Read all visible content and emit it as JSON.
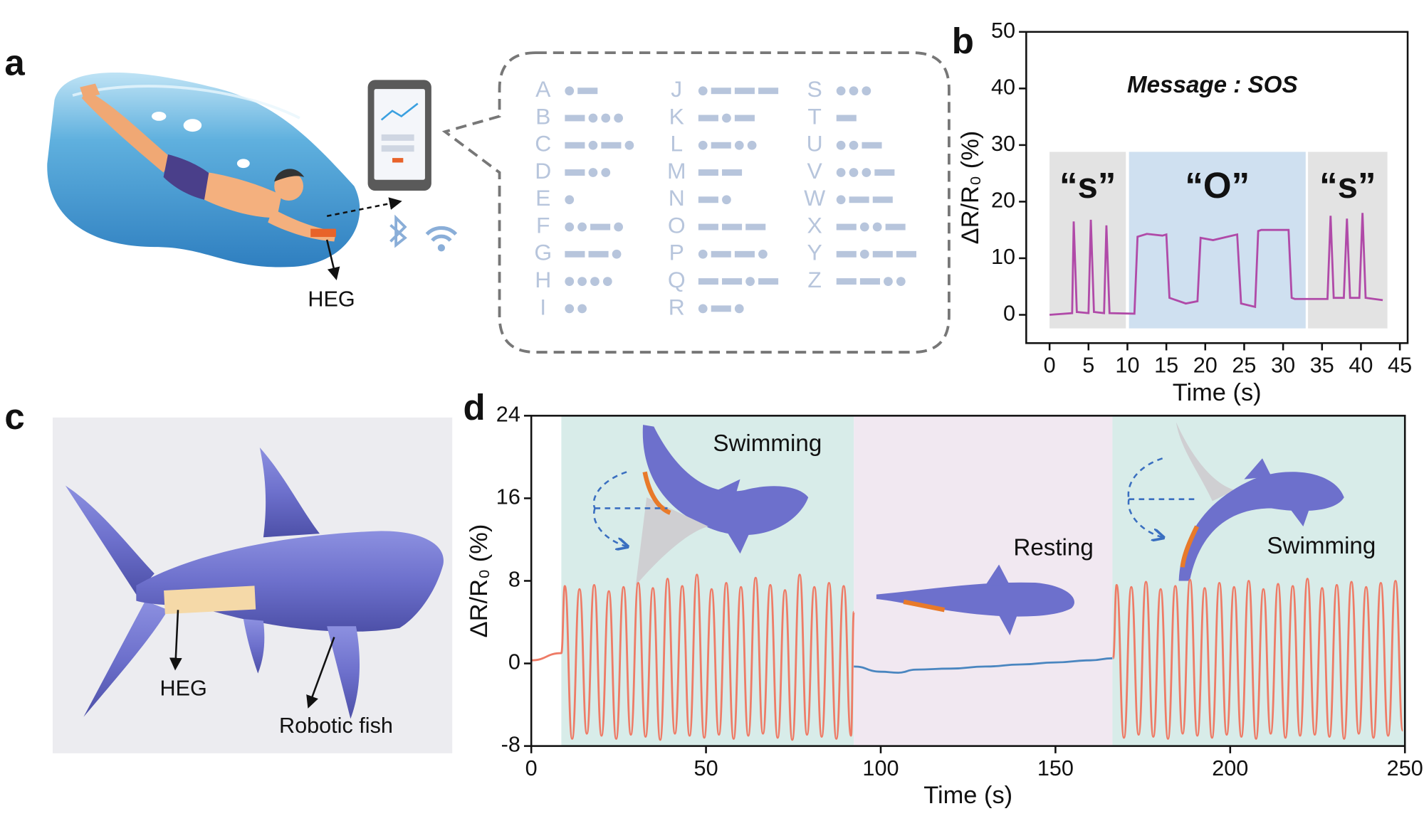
{
  "panel_labels": [
    "a",
    "b",
    "c",
    "d"
  ],
  "panel_a": {
    "device_label": "HEG",
    "morse": [
      {
        "letter": "A",
        "code": ".-"
      },
      {
        "letter": "B",
        "code": "-..."
      },
      {
        "letter": "C",
        "code": "-.-."
      },
      {
        "letter": "D",
        "code": "-.."
      },
      {
        "letter": "E",
        "code": "."
      },
      {
        "letter": "F",
        "code": "..-."
      },
      {
        "letter": "G",
        "code": "--."
      },
      {
        "letter": "H",
        "code": "...."
      },
      {
        "letter": "I",
        "code": ".."
      },
      {
        "letter": "J",
        "code": ".---"
      },
      {
        "letter": "K",
        "code": "-.-"
      },
      {
        "letter": "L",
        "code": ".-.."
      },
      {
        "letter": "M",
        "code": "--"
      },
      {
        "letter": "N",
        "code": "-."
      },
      {
        "letter": "O",
        "code": "---"
      },
      {
        "letter": "P",
        "code": ".--."
      },
      {
        "letter": "Q",
        "code": "--.-"
      },
      {
        "letter": "R",
        "code": ".-."
      },
      {
        "letter": "S",
        "code": "..."
      },
      {
        "letter": "T",
        "code": "-"
      },
      {
        "letter": "U",
        "code": "..-"
      },
      {
        "letter": "V",
        "code": "...-"
      },
      {
        "letter": "W",
        "code": ".--"
      },
      {
        "letter": "X",
        "code": "-..-"
      },
      {
        "letter": "Y",
        "code": "-.--"
      },
      {
        "letter": "Z",
        "code": "--.."
      }
    ]
  },
  "panel_c": {
    "heg_label": "HEG",
    "fish_label": "Robotic fish"
  },
  "chart_data": [
    {
      "type": "line",
      "annotation": "Message : SOS",
      "xlabel": "Time (s)",
      "ylabel": "ΔR/R₀ (%)",
      "xlim": [
        -3,
        46
      ],
      "ylim": [
        -5,
        50
      ],
      "xticks": [
        0,
        5,
        10,
        15,
        20,
        25,
        30,
        35,
        40,
        45
      ],
      "yticks": [
        0,
        10,
        20,
        30,
        40,
        50
      ],
      "regions": [
        {
          "label": "“s”",
          "x": [
            0,
            9.8
          ],
          "y": [
            -2.4,
            28.8
          ],
          "color": "#e3e3e3"
        },
        {
          "label": "“O”",
          "x": [
            10.2,
            32.9
          ],
          "y": [
            -2.4,
            28.8
          ],
          "color": "#cfe0f0"
        },
        {
          "label": "“s”",
          "x": [
            33.2,
            43.4
          ],
          "y": [
            -2.4,
            28.8
          ],
          "color": "#e3e3e3"
        }
      ],
      "series": [
        {
          "color": "#b04aa8",
          "x": [
            0,
            2.9,
            3.1,
            3.5,
            5.0,
            5.3,
            5.7,
            7.0,
            7.3,
            7.7,
            10.9,
            11.3,
            12.5,
            14.5,
            15.0,
            15.4,
            17.5,
            19.0,
            19.4,
            21,
            23.5,
            24.1,
            24.6,
            26.4,
            26.8,
            27.2,
            30.7,
            31.1,
            31.5,
            35.7,
            36.1,
            36.5,
            37.8,
            38.2,
            38.6,
            39.8,
            40.2,
            40.6,
            42.8
          ],
          "values": [
            0,
            0.3,
            16.5,
            0.5,
            0.3,
            16.8,
            0.5,
            0.3,
            15.8,
            0.3,
            0.2,
            13.8,
            14.3,
            14.0,
            14.2,
            3.0,
            2.0,
            2.4,
            13.6,
            13.2,
            14.0,
            14.2,
            2.0,
            1.4,
            14.8,
            15.0,
            15.0,
            3.0,
            2.8,
            2.8,
            17.5,
            3.0,
            3.0,
            17.0,
            3.0,
            3.0,
            18.0,
            3.0,
            2.6
          ]
        }
      ]
    },
    {
      "type": "line",
      "smooth": true,
      "xlabel": "Time (s)",
      "ylabel": "ΔR/R₀ (%)",
      "xlim": [
        0,
        250
      ],
      "ylim": [
        -8,
        24
      ],
      "xticks": [
        0,
        50,
        100,
        150,
        200,
        250
      ],
      "yticks": [
        -8,
        0,
        8,
        16,
        24
      ],
      "regions": [
        {
          "label": "Swimming",
          "x": [
            8.6,
            92.3
          ],
          "color": "#d8ece9"
        },
        {
          "label": "Resting",
          "x": [
            92.3,
            166.3
          ],
          "color": "#f1e8f1"
        },
        {
          "label": "Swimming",
          "x": [
            166.3,
            250
          ],
          "color": "#d8ece9"
        }
      ],
      "series": [
        {
          "color": "#ee7b66",
          "x": [
            0,
            8.6,
            9.6,
            11.7,
            13.8,
            15.9,
            18.0,
            20.1,
            22.2,
            24.3,
            26.4,
            28.5,
            30.6,
            32.7,
            34.8,
            36.9,
            39.0,
            41.1,
            43.2,
            45.3,
            47.4,
            49.5,
            51.6,
            53.7,
            55.8,
            57.9,
            60.0,
            62.1,
            64.2,
            66.3,
            68.4,
            70.5,
            72.6,
            74.7,
            76.8,
            78.9,
            81.0,
            83.1,
            85.2,
            87.3,
            89.4,
            91.5,
            92.3,
            129,
            166.5,
            167.5,
            169.6,
            171.7,
            173.8,
            175.9,
            178.0,
            180.1,
            182.2,
            184.3,
            186.4,
            188.5,
            190.6,
            192.7,
            194.8,
            196.9,
            199.0,
            201.1,
            203.2,
            205.3,
            207.4,
            209.5,
            211.6,
            213.7,
            215.8,
            217.9,
            220.0,
            222.1,
            224.2,
            226.3,
            228.4,
            230.5,
            232.6,
            234.7,
            236.8,
            238.9,
            241.0,
            243.1,
            245.2,
            247.3,
            249.4
          ],
          "values": [
            0.3,
            1.0,
            7.5,
            -7.3,
            7.2,
            -6.8,
            7.6,
            -7.0,
            7.0,
            -7.3,
            7.4,
            -6.9,
            7.8,
            -7.1,
            7.3,
            -7.4,
            8.2,
            -6.8,
            7.5,
            -7.0,
            8.6,
            -7.2,
            7.2,
            -6.9,
            7.8,
            -7.3,
            7.4,
            -7.0,
            8.3,
            -6.8,
            7.6,
            -7.2,
            7.1,
            -7.4,
            8.6,
            -6.9,
            7.4,
            -7.1,
            7.8,
            -7.3,
            7.5,
            -7.0,
            5,
            null,
            0.5,
            7.6,
            -7.2,
            7.4,
            -6.9,
            7.9,
            -7.1,
            7.2,
            -7.3,
            7.5,
            -6.8,
            8.1,
            -7.0,
            7.3,
            -7.2,
            7.8,
            -6.9,
            7.4,
            -7.1,
            8.0,
            -7.3,
            7.2,
            -6.8,
            7.7,
            -7.2,
            7.5,
            -7.0,
            8.2,
            -6.9,
            7.3,
            -7.1,
            7.6,
            -7.3,
            7.9,
            -6.8,
            7.4,
            -7.2,
            7.8,
            -7.0,
            8.0,
            -6.5
          ]
        },
        {
          "color": "#4a86c0",
          "x": [
            92.3,
            100,
            105,
            110,
            120,
            130,
            140,
            150,
            160,
            166.3
          ],
          "values": [
            -0.3,
            -0.8,
            -0.9,
            -0.6,
            -0.5,
            -0.3,
            -0.1,
            0.1,
            0.3,
            0.5
          ]
        }
      ]
    }
  ]
}
